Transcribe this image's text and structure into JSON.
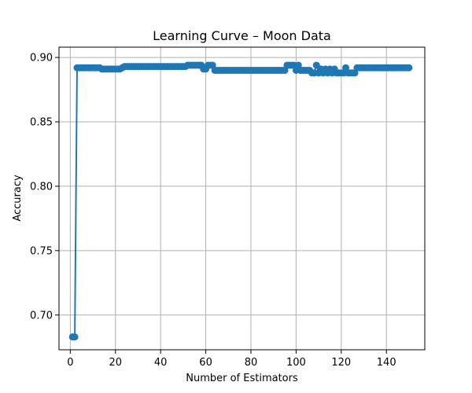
{
  "chart_data": {
    "type": "line",
    "title": "Learning Curve – Moon Data",
    "xlabel": "Number of Estimators",
    "ylabel": "Accuracy",
    "xlim": [
      -5,
      157
    ],
    "ylim": [
      0.673,
      0.908
    ],
    "xticks": [
      0,
      20,
      40,
      60,
      80,
      100,
      120,
      140
    ],
    "xtick_labels": [
      "0",
      "20",
      "40",
      "60",
      "80",
      "100",
      "120",
      "140"
    ],
    "yticks": [
      0.7,
      0.75,
      0.8,
      0.85,
      0.9
    ],
    "ytick_labels": [
      "0.70",
      "0.75",
      "0.80",
      "0.85",
      "0.90"
    ],
    "grid": true,
    "legend": null,
    "series": [
      {
        "color": "#1f77b4",
        "marker": "circle",
        "x": [
          1,
          2,
          3,
          4,
          5,
          6,
          7,
          8,
          9,
          10,
          11,
          12,
          13,
          14,
          15,
          16,
          17,
          18,
          19,
          20,
          21,
          22,
          23,
          24,
          25,
          26,
          27,
          28,
          29,
          30,
          31,
          32,
          33,
          34,
          35,
          36,
          37,
          38,
          39,
          40,
          41,
          42,
          43,
          44,
          45,
          46,
          47,
          48,
          49,
          50,
          51,
          52,
          53,
          54,
          55,
          56,
          57,
          58,
          59,
          60,
          61,
          62,
          63,
          64,
          65,
          66,
          67,
          68,
          69,
          70,
          71,
          72,
          73,
          74,
          75,
          76,
          77,
          78,
          79,
          80,
          81,
          82,
          83,
          84,
          85,
          86,
          87,
          88,
          89,
          90,
          91,
          92,
          93,
          94,
          95,
          96,
          97,
          98,
          99,
          100,
          101,
          102,
          103,
          104,
          105,
          106,
          107,
          108,
          109,
          110,
          111,
          112,
          113,
          114,
          115,
          116,
          117,
          118,
          119,
          120,
          121,
          122,
          123,
          124,
          125,
          126,
          127,
          128,
          129,
          130,
          131,
          132,
          133,
          134,
          135,
          136,
          137,
          138,
          139,
          140,
          141,
          142,
          143,
          144,
          145,
          146,
          147,
          148,
          149,
          150
        ],
        "y": [
          0.683,
          0.683,
          0.892,
          0.892,
          0.892,
          0.892,
          0.892,
          0.892,
          0.892,
          0.892,
          0.892,
          0.892,
          0.892,
          0.891,
          0.891,
          0.891,
          0.891,
          0.891,
          0.891,
          0.891,
          0.891,
          0.891,
          0.892,
          0.893,
          0.893,
          0.893,
          0.893,
          0.893,
          0.893,
          0.893,
          0.893,
          0.893,
          0.893,
          0.893,
          0.893,
          0.893,
          0.893,
          0.893,
          0.893,
          0.893,
          0.893,
          0.893,
          0.893,
          0.893,
          0.893,
          0.893,
          0.893,
          0.893,
          0.893,
          0.893,
          0.893,
          0.894,
          0.894,
          0.894,
          0.894,
          0.894,
          0.894,
          0.894,
          0.891,
          0.891,
          0.894,
          0.894,
          0.894,
          0.89,
          0.89,
          0.89,
          0.89,
          0.89,
          0.89,
          0.89,
          0.89,
          0.89,
          0.89,
          0.89,
          0.89,
          0.89,
          0.89,
          0.89,
          0.89,
          0.89,
          0.89,
          0.89,
          0.89,
          0.89,
          0.89,
          0.89,
          0.89,
          0.89,
          0.89,
          0.89,
          0.89,
          0.89,
          0.89,
          0.89,
          0.89,
          0.894,
          0.894,
          0.894,
          0.894,
          0.89,
          0.894,
          0.89,
          0.89,
          0.89,
          0.89,
          0.89,
          0.888,
          0.888,
          0.894,
          0.888,
          0.891,
          0.888,
          0.891,
          0.888,
          0.891,
          0.888,
          0.891,
          0.888,
          0.888,
          0.888,
          0.888,
          0.892,
          0.888,
          0.888,
          0.888,
          0.888,
          0.892,
          0.892,
          0.892,
          0.892,
          0.892,
          0.892,
          0.892,
          0.892,
          0.892,
          0.892,
          0.892,
          0.892,
          0.892,
          0.892,
          0.892,
          0.892,
          0.892,
          0.892,
          0.892,
          0.892,
          0.892,
          0.892,
          0.892,
          0.892
        ]
      }
    ]
  }
}
